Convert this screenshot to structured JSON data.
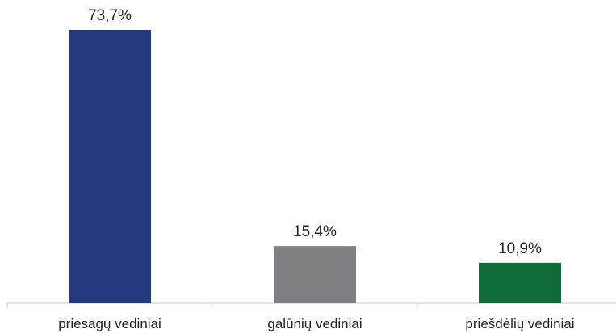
{
  "chart_data": {
    "type": "bar",
    "title": "",
    "xlabel": "",
    "ylabel": "",
    "categories": [
      "priesagų vediniai",
      "galūnių vediniai",
      "priešdėlių vediniai"
    ],
    "values": [
      73.7,
      15.4,
      10.9
    ],
    "value_labels": [
      "73,7%",
      "15,4%",
      "10,9%"
    ],
    "colors": [
      "#233a7e",
      "#7f7f83",
      "#0f6b37"
    ],
    "ylim": [
      0,
      100
    ],
    "grid": false,
    "legend": "none"
  }
}
